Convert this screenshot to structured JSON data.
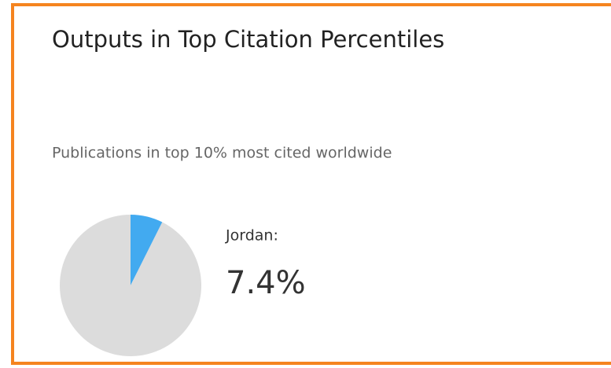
{
  "chart_data": {
    "type": "pie",
    "title": "Outputs in Top Citation Percentiles",
    "subtitle": "Publications in top 10% most cited worldwide",
    "categories": [
      "Jordan:",
      null
    ],
    "values": [
      7.4,
      92.6
    ],
    "value_labels": [
      "7.4%",
      null
    ],
    "colors": [
      "#42aaf0",
      "#dcdcdc"
    ]
  }
}
